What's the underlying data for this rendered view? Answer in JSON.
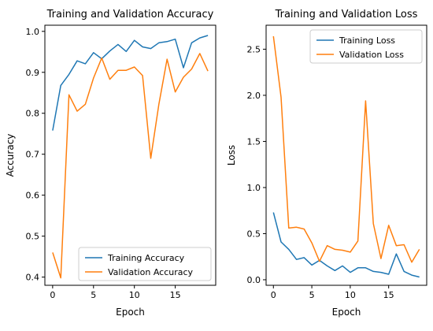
{
  "colors": {
    "training": "#1f77b4",
    "validation": "#ff7f0e",
    "axis": "#000000"
  },
  "chart_data": [
    {
      "type": "line",
      "title": "Training and Validation Accuracy",
      "xlabel": "Epoch",
      "ylabel": "Accuracy",
      "xlim": [
        -0.95,
        19.95
      ],
      "ylim": [
        0.38,
        1.015
      ],
      "xticks": [
        0,
        5,
        10,
        15
      ],
      "yticks": [
        0.4,
        0.5,
        0.6,
        0.7,
        0.8,
        0.9,
        1.0
      ],
      "ytick_labels": [
        "0.4",
        "0.5",
        "0.6",
        "0.7",
        "0.8",
        "0.9",
        "1.0"
      ],
      "legend_position": "lower-right",
      "grid": false,
      "x": [
        0,
        1,
        2,
        3,
        4,
        5,
        6,
        7,
        8,
        9,
        10,
        11,
        12,
        13,
        14,
        15,
        16,
        17,
        18,
        19
      ],
      "series": [
        {
          "name": "Training Accuracy",
          "color": "#1f77b4",
          "values": [
            0.758,
            0.868,
            0.895,
            0.928,
            0.921,
            0.948,
            0.933,
            0.952,
            0.968,
            0.951,
            0.978,
            0.962,
            0.958,
            0.972,
            0.975,
            0.981,
            0.911,
            0.972,
            0.984,
            0.99
          ]
        },
        {
          "name": "Validation Accuracy",
          "color": "#ff7f0e",
          "values": [
            0.46,
            0.398,
            0.845,
            0.805,
            0.822,
            0.886,
            0.935,
            0.883,
            0.905,
            0.905,
            0.913,
            0.892,
            0.69,
            0.822,
            0.932,
            0.852,
            0.888,
            0.908,
            0.946,
            0.903
          ]
        }
      ]
    },
    {
      "type": "line",
      "title": "Training and Validation Loss",
      "xlabel": "Epoch",
      "ylabel": "Loss",
      "xlim": [
        -0.95,
        19.95
      ],
      "ylim": [
        -0.06,
        2.76
      ],
      "xticks": [
        0,
        5,
        10,
        15
      ],
      "yticks": [
        0.0,
        0.5,
        1.0,
        1.5,
        2.0,
        2.5
      ],
      "ytick_labels": [
        "0.0",
        "0.5",
        "1.0",
        "1.5",
        "2.0",
        "2.5"
      ],
      "legend_position": "upper-right",
      "grid": false,
      "x": [
        0,
        1,
        2,
        3,
        4,
        5,
        6,
        7,
        8,
        9,
        10,
        11,
        12,
        13,
        14,
        15,
        16,
        17,
        18,
        19
      ],
      "series": [
        {
          "name": "Training Loss",
          "color": "#1f77b4",
          "values": [
            0.73,
            0.41,
            0.33,
            0.22,
            0.24,
            0.16,
            0.21,
            0.15,
            0.1,
            0.15,
            0.08,
            0.13,
            0.13,
            0.09,
            0.08,
            0.06,
            0.28,
            0.09,
            0.05,
            0.03
          ]
        },
        {
          "name": "Validation Loss",
          "color": "#ff7f0e",
          "values": [
            2.64,
            1.98,
            0.56,
            0.57,
            0.55,
            0.4,
            0.2,
            0.37,
            0.33,
            0.32,
            0.3,
            0.42,
            1.94,
            0.61,
            0.23,
            0.59,
            0.37,
            0.38,
            0.19,
            0.33
          ]
        }
      ]
    }
  ]
}
